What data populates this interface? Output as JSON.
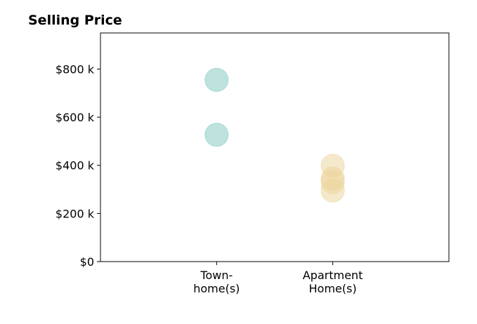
{
  "chart_data": {
    "type": "scatter",
    "title": "Selling Price",
    "xlabel": "",
    "ylabel": "",
    "categories": [
      "Town-\nhome(s)",
      "Apartment\nHome(s)"
    ],
    "y_ticks": [
      0,
      200,
      400,
      600,
      800
    ],
    "y_tick_labels": [
      "$0",
      "$200 k",
      "$400 k",
      "$600 k",
      "$800 k"
    ],
    "ylim": [
      0,
      950
    ],
    "grid": false,
    "legend": "none",
    "series": [
      {
        "category": "Town-\nhome(s)",
        "color": "#7ec8bf",
        "values": [
          755,
          527
        ]
      },
      {
        "category": "Apartment\nHome(s)",
        "color": "#ecd49a",
        "values": [
          398,
          345,
          330,
          295
        ]
      }
    ]
  }
}
